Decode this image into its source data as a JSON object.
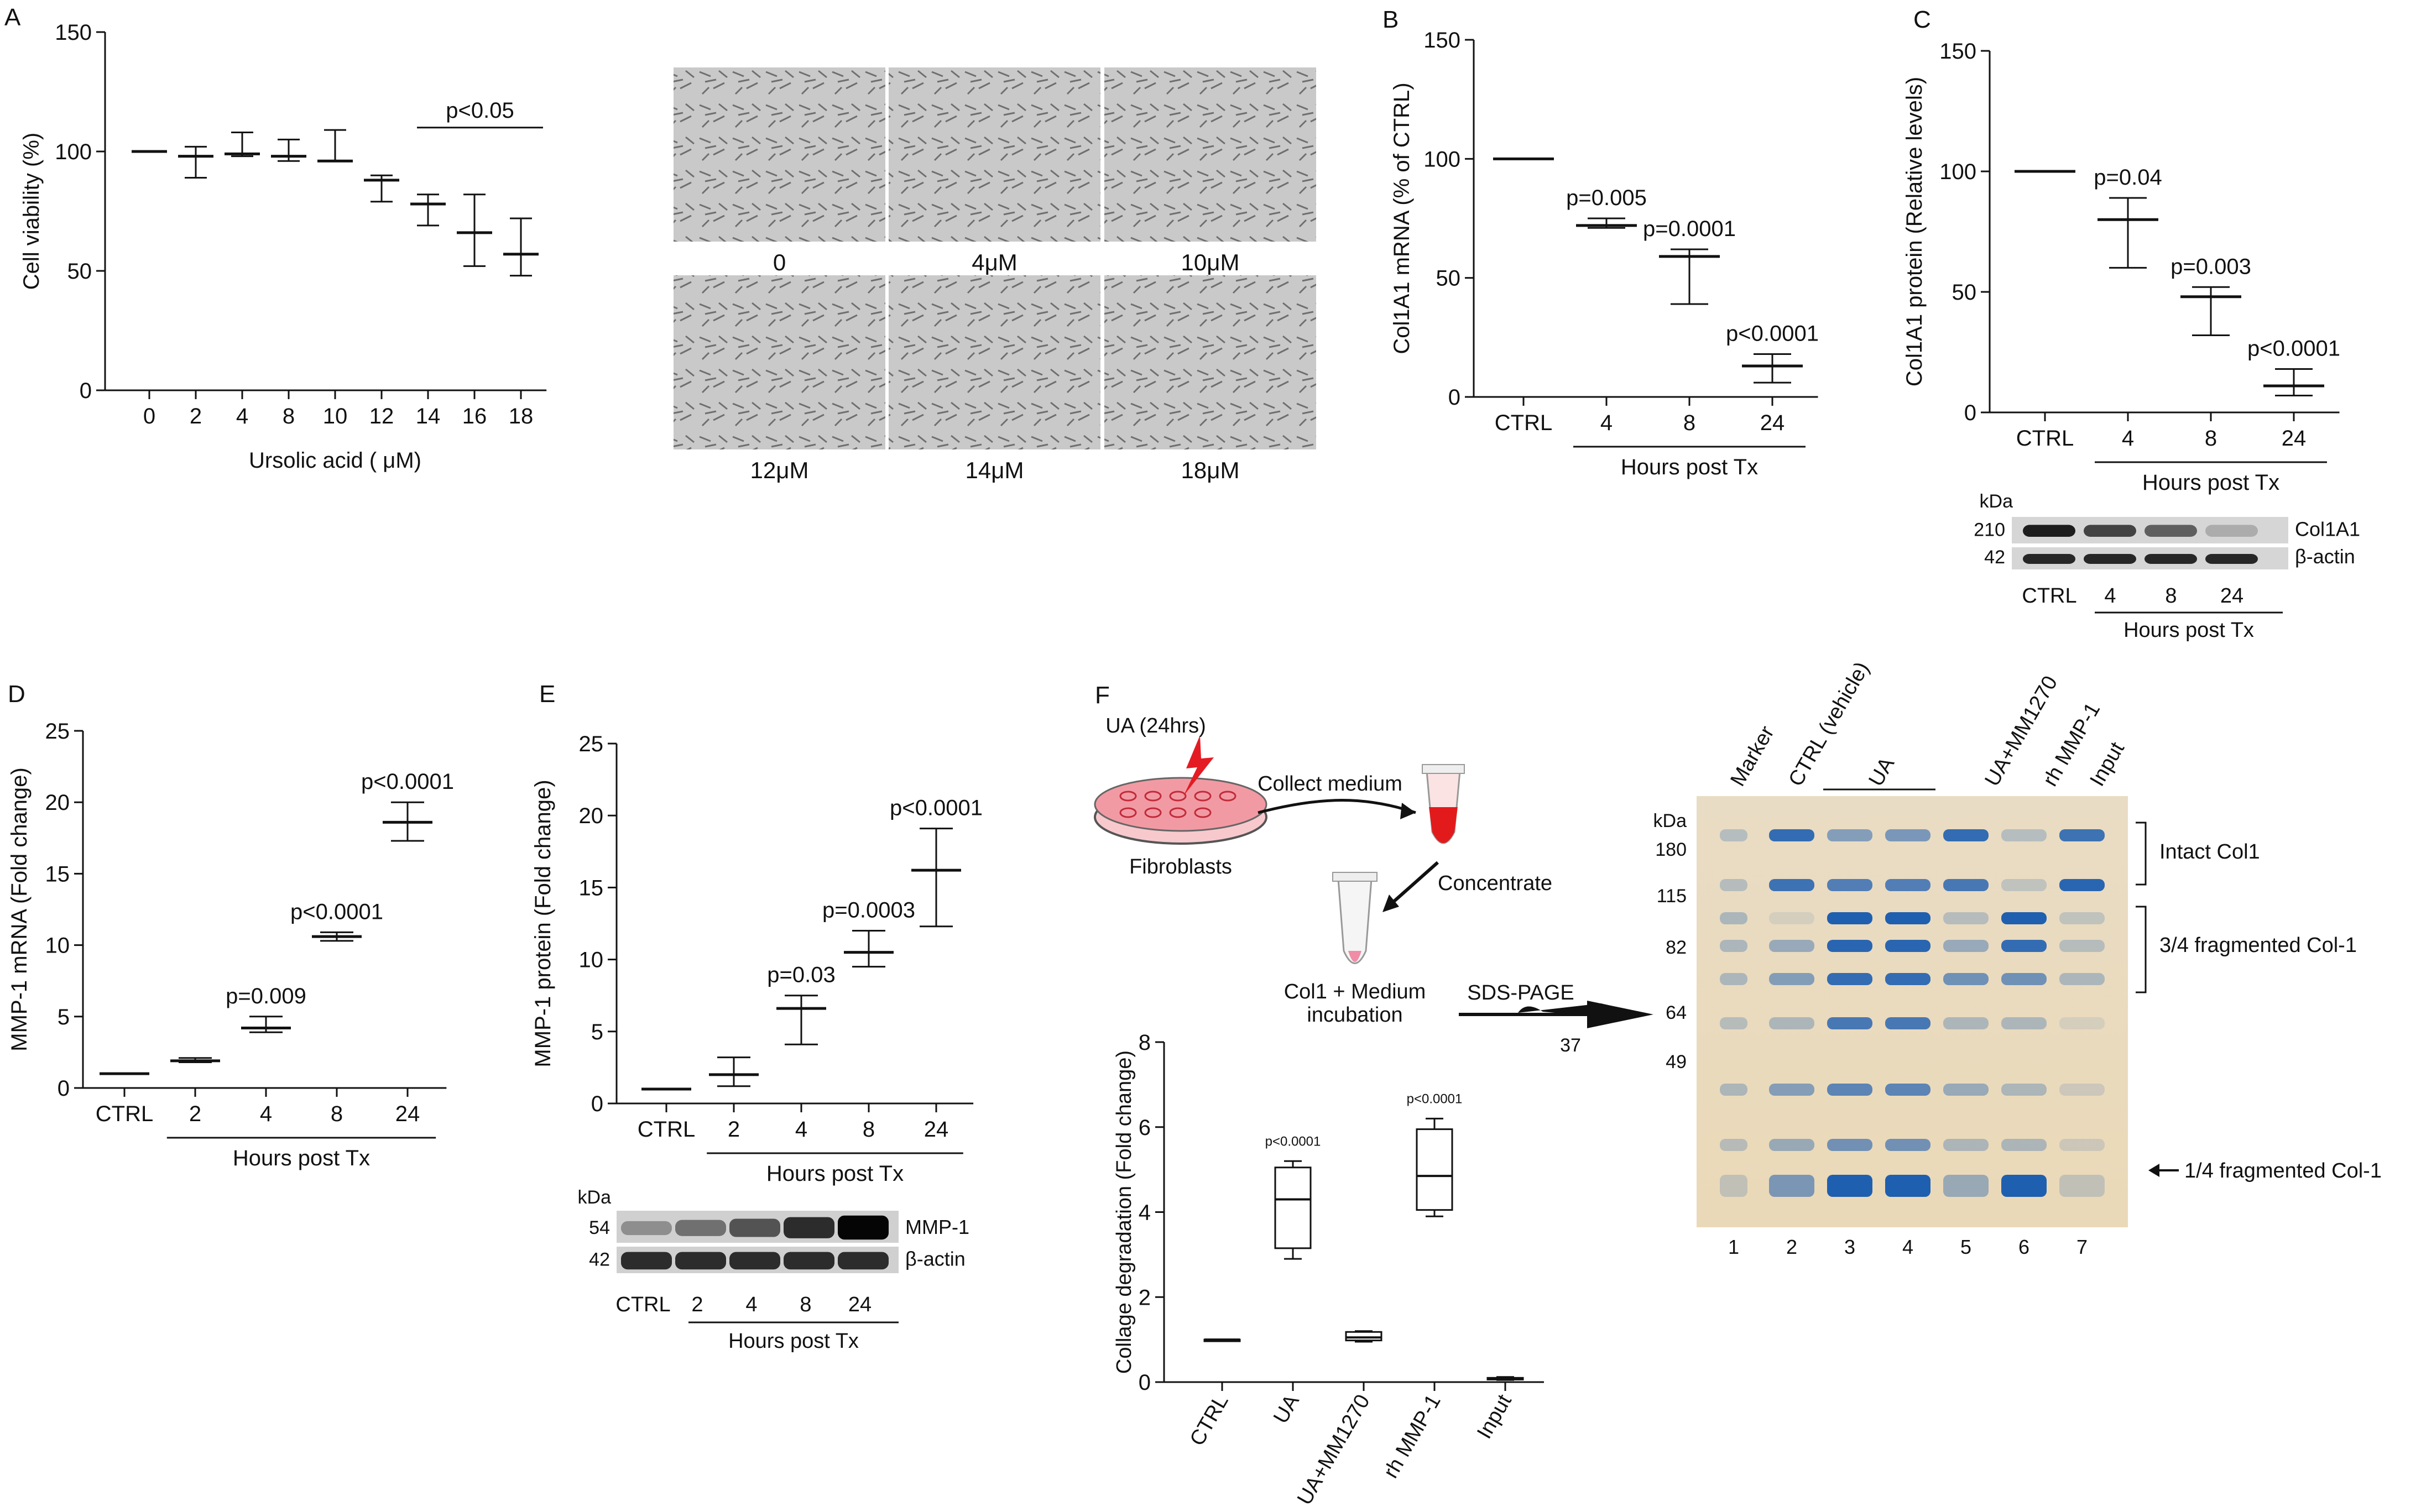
{
  "panels": {
    "A": {
      "letter": "A",
      "chart_data": {
        "type": "scatter",
        "title": "",
        "xlabel": "Ursolic acid (  μM)",
        "ylabel": "Cell viability (%)",
        "ylim": [
          0,
          150
        ],
        "yticks": [
          0,
          50,
          100,
          150
        ],
        "categories": [
          "0",
          "2",
          "4",
          "8",
          "10",
          "12",
          "14",
          "16",
          "18"
        ],
        "series": [
          {
            "mean": [
              100,
              98,
              99,
              98,
              96,
              88,
              78,
              66,
              57
            ],
            "low": [
              100,
              89,
              98,
              96,
              96,
              79,
              69,
              52,
              48
            ],
            "high": [
              100,
              102,
              108,
              105,
              109,
              90,
              82,
              82,
              72
            ]
          }
        ],
        "annotations": [
          {
            "text": "p<0.05",
            "from": "14",
            "to": "18"
          }
        ]
      },
      "images": {
        "labels": [
          "0",
          "4μM",
          "10μM",
          "12μM",
          "14μM",
          "18μM"
        ]
      }
    },
    "B": {
      "letter": "B",
      "chart_data": {
        "type": "scatter",
        "title": "",
        "xlabel": "Hours post Tx",
        "ylabel": "Col1A1 mRNA (% of CTRL)",
        "ylim": [
          0,
          150
        ],
        "yticks": [
          0,
          50,
          100,
          150
        ],
        "categories": [
          "CTRL",
          "4",
          "8",
          "24"
        ],
        "series": [
          {
            "mean": [
              100,
              72,
              59,
              13
            ],
            "low": [
              100,
              71,
              39,
              6
            ],
            "high": [
              100,
              75,
              62,
              18
            ]
          }
        ],
        "pvalues": [
          "",
          "p=0.005",
          "p=0.0001",
          "p<0.0001"
        ]
      }
    },
    "C": {
      "letter": "C",
      "chart_data": {
        "type": "scatter",
        "title": "",
        "xlabel": "Hours post Tx",
        "ylabel": "Col1A1 protein (Relative levels)",
        "ylim": [
          0,
          150
        ],
        "yticks": [
          0,
          50,
          100,
          150
        ],
        "categories": [
          "CTRL",
          "4",
          "8",
          "24"
        ],
        "series": [
          {
            "mean": [
              100,
              80,
              48,
              11
            ],
            "low": [
              100,
              60,
              32,
              7
            ],
            "high": [
              100,
              89,
              52,
              18
            ]
          }
        ],
        "pvalues": [
          "",
          "p=0.04",
          "p=0.003",
          "p<0.0001"
        ]
      },
      "blot": {
        "kda": "kDa",
        "rows": [
          {
            "mw": "210",
            "label": "Col1A1",
            "intensity": [
              0.9,
              0.7,
              0.55,
              0.15
            ]
          },
          {
            "mw": "42",
            "label": "β-actin",
            "intensity": [
              0.85,
              0.85,
              0.85,
              0.85
            ]
          }
        ],
        "lanes": [
          "CTRL",
          "4",
          "8",
          "24"
        ],
        "xlabel": "Hours post Tx"
      }
    },
    "D": {
      "letter": "D",
      "chart_data": {
        "type": "scatter",
        "title": "",
        "xlabel": "Hours post Tx",
        "ylabel": "MMP-1 mRNA (Fold change)",
        "ylim": [
          0,
          25
        ],
        "yticks": [
          0,
          5,
          10,
          15,
          20,
          25
        ],
        "categories": [
          "CTRL",
          "2",
          "4",
          "8",
          "24"
        ],
        "series": [
          {
            "mean": [
              1,
              1.9,
              4.2,
              10.6,
              18.6
            ],
            "low": [
              1,
              1.8,
              3.9,
              10.3,
              17.3
            ],
            "high": [
              1,
              2.1,
              5.0,
              10.9,
              20.0
            ]
          }
        ],
        "pvalues": [
          "",
          "",
          "p=0.009",
          "p<0.0001",
          "p<0.0001"
        ]
      }
    },
    "E": {
      "letter": "E",
      "chart_data": {
        "type": "scatter",
        "title": "",
        "xlabel": "Hours post Tx",
        "ylabel": "MMP-1 protein (Fold change)",
        "ylim": [
          0,
          25
        ],
        "yticks": [
          0,
          5,
          10,
          15,
          20,
          25
        ],
        "categories": [
          "CTRL",
          "2",
          "4",
          "8",
          "24"
        ],
        "series": [
          {
            "mean": [
              1,
              2.0,
              6.6,
              10.5,
              16.2
            ],
            "low": [
              1,
              1.2,
              4.1,
              9.5,
              12.3
            ],
            "high": [
              1,
              3.2,
              7.5,
              12.0,
              19.1
            ]
          }
        ],
        "pvalues": [
          "",
          "",
          "p=0.03",
          "p=0.0003",
          "p<0.0001"
        ]
      },
      "blot": {
        "kda": "kDa",
        "rows": [
          {
            "mw": "54",
            "label": "MMP-1",
            "intensity": [
              0.3,
              0.45,
              0.6,
              0.8,
              1.0
            ]
          },
          {
            "mw": "42",
            "label": "β-actin",
            "intensity": [
              0.8,
              0.8,
              0.8,
              0.8,
              0.8
            ]
          }
        ],
        "lanes": [
          "CTRL",
          "2",
          "4",
          "8",
          "24"
        ],
        "xlabel": "Hours post Tx"
      }
    },
    "F": {
      "letter": "F",
      "schematic": {
        "treatment": "UA (24hrs)",
        "cells": "Fibroblasts",
        "step1": "Collect medium",
        "step2": "Concentrate",
        "step3a": "Col1 + Medium",
        "step3b": "incubation",
        "step4": "SDS-PAGE",
        "marker37": "37"
      },
      "chart_data": {
        "type": "box",
        "title": "",
        "xlabel": "",
        "ylabel": "Collage degradation (Fold change)",
        "ylim": [
          0,
          8
        ],
        "yticks": [
          0,
          2,
          4,
          6,
          8
        ],
        "categories": [
          "CTRL",
          "UA",
          "UA+MM1270",
          "rh MMP-1",
          "Input"
        ],
        "boxes": [
          {
            "min": 1.0,
            "q1": 1.0,
            "median": 1.0,
            "q3": 1.0,
            "max": 1.0
          },
          {
            "min": 2.9,
            "q1": 3.15,
            "median": 4.3,
            "q3": 5.05,
            "max": 5.2
          },
          {
            "min": 0.95,
            "q1": 0.98,
            "median": 1.05,
            "q3": 1.18,
            "max": 1.2
          },
          {
            "min": 3.9,
            "q1": 4.05,
            "median": 4.85,
            "q3": 5.95,
            "max": 6.2
          },
          {
            "min": 0.05,
            "q1": 0.06,
            "median": 0.08,
            "q3": 0.1,
            "max": 0.12
          }
        ],
        "pvalues": [
          "",
          "p<0.0001",
          "",
          "p<0.0001",
          ""
        ]
      },
      "gel": {
        "lane_labels": [
          "Marker",
          "CTRL (vehicle)",
          "UA",
          "UA+MM1270",
          "rh MMP-1",
          "Input"
        ],
        "lane_numbers": [
          "1",
          "2",
          "3",
          "4",
          "5",
          "6",
          "7"
        ],
        "kda": "kDa",
        "mw": [
          "180",
          "115",
          "82",
          "64",
          "49"
        ],
        "annotations": [
          "Intact Col1",
          "3/4 fragmented Col-1",
          "1/4 fragmented Col-1"
        ]
      }
    }
  }
}
